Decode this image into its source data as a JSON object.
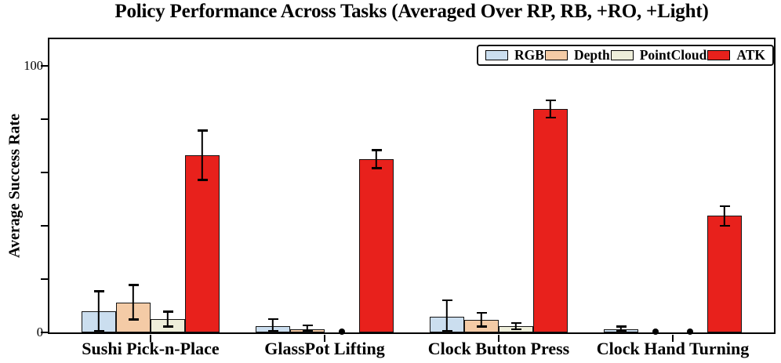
{
  "page": {
    "background": "#ffffff"
  },
  "chart_data": {
    "type": "bar",
    "title": "Policy Performance Across Tasks (Averaged Over RP, RB, +RO, +Light)",
    "ylabel": "Average Success Rate",
    "xlabel": "",
    "categories": [
      "Sushi Pick-n-Place",
      "GlassPot Lifting",
      "Clock Button Press",
      "Clock Hand Turning"
    ],
    "series": [
      {
        "name": "RGB",
        "color": "#cbdeef",
        "edge_color": "#151515",
        "values": [
          8,
          2.5,
          6,
          1.2
        ],
        "errors": [
          7.8,
          2.8,
          6.4,
          1.4
        ]
      },
      {
        "name": "Depth",
        "color": "#f4cba6",
        "edge_color": "#151515",
        "values": [
          11.3,
          1.2,
          4.8,
          0
        ],
        "errors": [
          6.8,
          1.8,
          2.9,
          0
        ]
      },
      {
        "name": "PointCloud",
        "color": "#eeeeda",
        "edge_color": "#151515",
        "values": [
          5,
          0,
          2.3,
          0
        ],
        "errors": [
          3.1,
          0,
          1.5,
          0
        ]
      },
      {
        "name": "ATK",
        "color": "#e8211c",
        "edge_color": "#151515",
        "values": [
          66.5,
          65,
          83.8,
          43.7
        ],
        "errors": [
          9.6,
          3.7,
          3.6,
          4
        ]
      }
    ],
    "ylim": [
      0,
      110
    ],
    "yticks": [
      {
        "value": 0,
        "label": "0"
      },
      {
        "value": 20,
        "label": ""
      },
      {
        "value": 40,
        "label": ""
      },
      {
        "value": 60,
        "label": ""
      },
      {
        "value": 80,
        "label": ""
      },
      {
        "value": 100,
        "label": "100"
      }
    ],
    "legend": {
      "position": "upper-right"
    },
    "grid": false,
    "error_bars": true,
    "zero_value_marker": "black-dot"
  }
}
